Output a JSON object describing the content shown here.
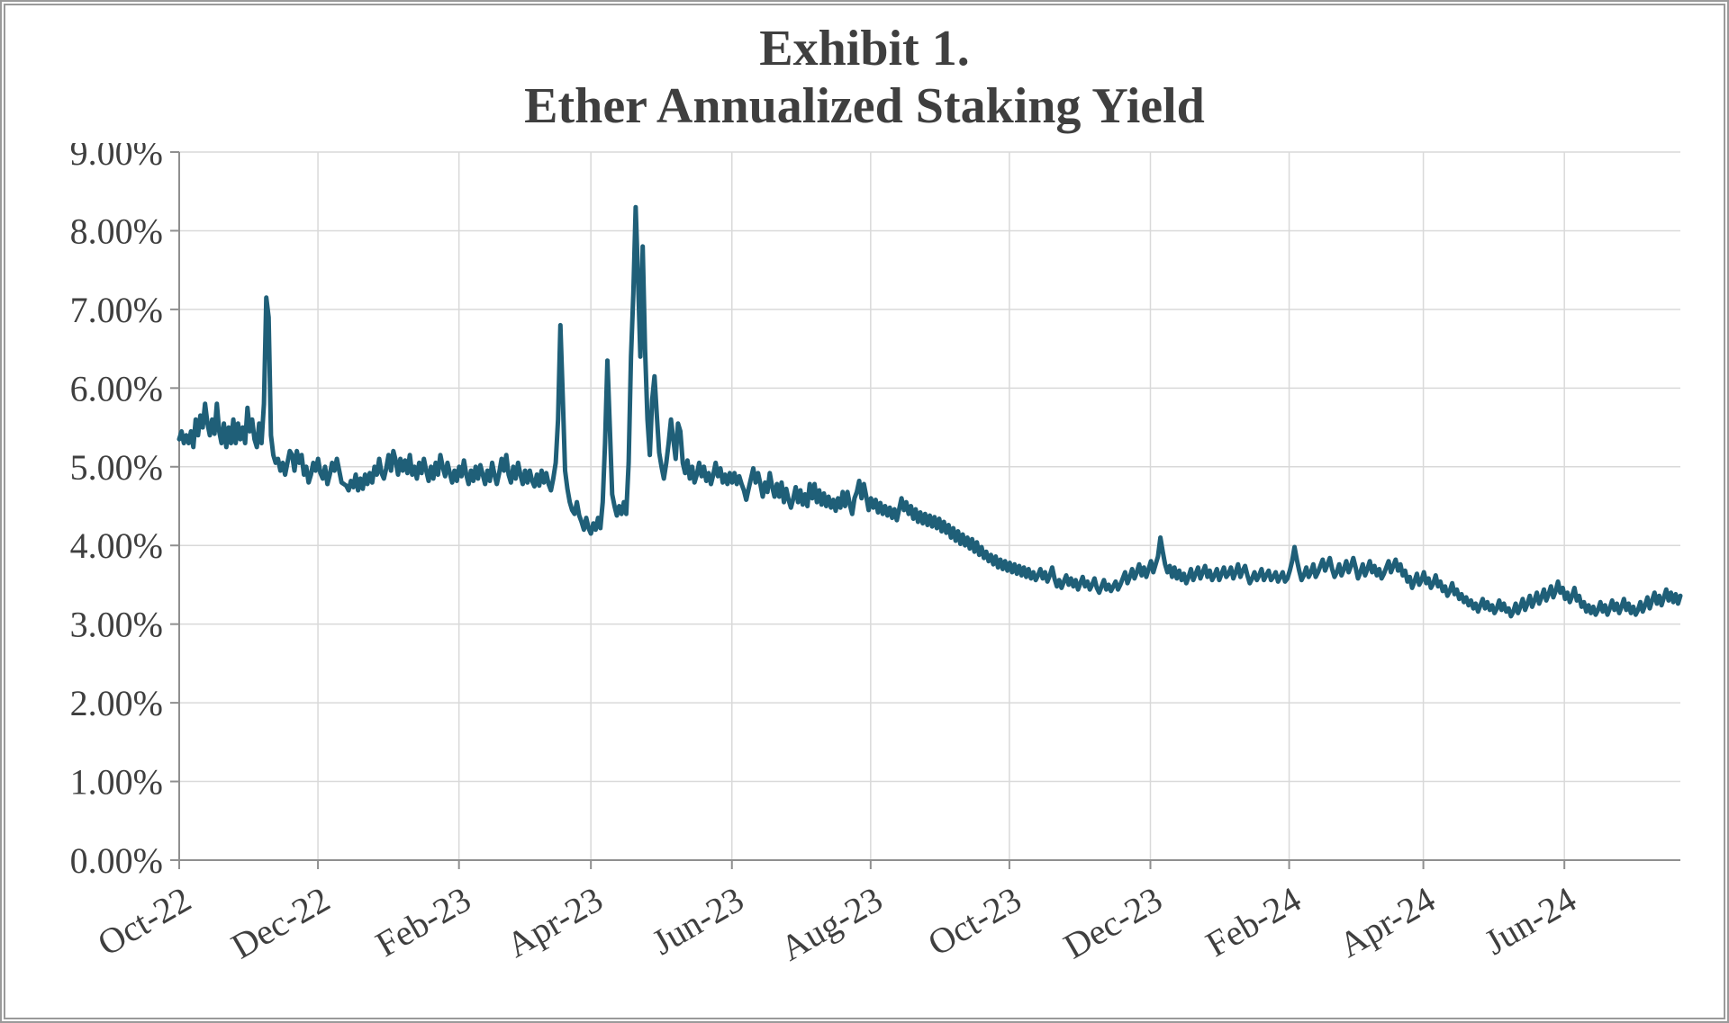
{
  "chart": {
    "type": "line",
    "title_line1": "Exhibit 1.",
    "title_line2": "Ether Annualized Staking Yield",
    "title_color": "#3f3f3f",
    "title_fontsize": 56,
    "background_color": "#ffffff",
    "frame_border_color": "#9a9a9a",
    "grid_color": "#d9d9d9",
    "axis_line_color": "#8f8f8f",
    "line_color": "#1f5f78",
    "line_width": 5,
    "tick_label_color": "#3f3f3f",
    "ytick_fontsize": 40,
    "xtick_fontsize": 40,
    "ylim": [
      0,
      9
    ],
    "yticks": [
      0,
      1,
      2,
      3,
      4,
      5,
      6,
      7,
      8,
      9
    ],
    "ytick_labels": [
      "0.00%",
      "1.00%",
      "2.00%",
      "3.00%",
      "4.00%",
      "5.00%",
      "6.00%",
      "7.00%",
      "8.00%",
      "9.00%"
    ],
    "xlim": [
      0,
      660
    ],
    "xticks": [
      0,
      61,
      123,
      181,
      243,
      304,
      365,
      427,
      488,
      547,
      609,
      670
    ],
    "xtick_labels": [
      "Oct-22",
      "Dec-22",
      "Feb-23",
      "Apr-23",
      "Jun-23",
      "Aug-23",
      "Oct-23",
      "Dec-23",
      "Feb-24",
      "Apr-24",
      "Jun-24",
      ""
    ],
    "xtick_rotation_deg": -30,
    "series_y": [
      5.35,
      5.45,
      5.3,
      5.4,
      5.3,
      5.45,
      5.25,
      5.6,
      5.4,
      5.65,
      5.5,
      5.8,
      5.55,
      5.4,
      5.6,
      5.42,
      5.8,
      5.45,
      5.3,
      5.55,
      5.25,
      5.5,
      5.3,
      5.6,
      5.3,
      5.55,
      5.35,
      5.5,
      5.3,
      5.75,
      5.45,
      5.6,
      5.35,
      5.25,
      5.55,
      5.3,
      5.8,
      7.15,
      6.9,
      5.4,
      5.15,
      5.05,
      5.1,
      4.95,
      5.05,
      4.9,
      5.05,
      5.2,
      5.15,
      4.95,
      5.2,
      5.05,
      5.15,
      4.9,
      5.0,
      4.8,
      4.9,
      5.05,
      4.95,
      5.1,
      4.92,
      4.85,
      5.0,
      4.78,
      4.9,
      5.05,
      4.95,
      5.1,
      4.95,
      4.8,
      4.78,
      4.76,
      4.7,
      4.82,
      4.74,
      4.9,
      4.7,
      4.85,
      4.72,
      4.9,
      4.78,
      4.92,
      4.8,
      5.0,
      4.9,
      5.1,
      4.92,
      4.85,
      4.98,
      5.15,
      4.95,
      5.2,
      5.08,
      4.9,
      5.1,
      4.95,
      5.08,
      4.92,
      5.15,
      4.9,
      5.0,
      4.85,
      5.05,
      4.92,
      5.1,
      4.95,
      4.82,
      5.0,
      4.85,
      5.05,
      4.9,
      5.15,
      5.0,
      4.88,
      5.05,
      4.92,
      4.8,
      4.95,
      4.82,
      5.0,
      4.88,
      5.08,
      4.9,
      4.78,
      4.95,
      4.82,
      5.0,
      4.85,
      5.02,
      4.9,
      4.78,
      4.95,
      4.82,
      5.05,
      4.9,
      4.78,
      4.92,
      5.1,
      4.95,
      5.15,
      4.9,
      4.8,
      5.0,
      4.85,
      5.05,
      4.9,
      4.78,
      4.95,
      4.8,
      4.95,
      4.82,
      4.75,
      4.9,
      4.76,
      4.95,
      4.8,
      4.92,
      4.78,
      4.7,
      4.85,
      5.05,
      5.6,
      6.8,
      5.9,
      4.95,
      4.72,
      4.55,
      4.45,
      4.4,
      4.55,
      4.38,
      4.3,
      4.2,
      4.35,
      4.22,
      4.15,
      4.28,
      4.2,
      4.35,
      4.22,
      4.55,
      5.3,
      6.35,
      5.5,
      4.65,
      4.5,
      4.38,
      4.5,
      4.4,
      4.55,
      4.4,
      5.05,
      6.4,
      7.2,
      8.3,
      7.4,
      6.4,
      7.8,
      6.5,
      5.6,
      5.15,
      5.85,
      6.15,
      5.65,
      5.18,
      5.0,
      4.85,
      5.05,
      5.3,
      5.6,
      5.35,
      5.1,
      5.55,
      5.45,
      5.05,
      4.92,
      5.08,
      4.85,
      5.0,
      4.8,
      4.9,
      5.05,
      4.88,
      5.0,
      4.82,
      4.92,
      4.78,
      4.9,
      5.05,
      4.88,
      4.98,
      4.8,
      4.9,
      4.78,
      4.92,
      4.8,
      4.92,
      4.78,
      4.88,
      4.78,
      4.7,
      4.58,
      4.72,
      4.85,
      4.98,
      4.8,
      4.92,
      4.78,
      4.62,
      4.8,
      4.68,
      4.92,
      4.75,
      4.62,
      4.78,
      4.62,
      4.8,
      4.55,
      4.72,
      4.58,
      4.48,
      4.6,
      4.74,
      4.55,
      4.7,
      4.52,
      4.65,
      4.5,
      4.78,
      4.6,
      4.78,
      4.55,
      4.7,
      4.52,
      4.66,
      4.5,
      4.62,
      4.48,
      4.58,
      4.44,
      4.6,
      4.48,
      4.68,
      4.5,
      4.68,
      4.52,
      4.4,
      4.6,
      4.68,
      4.82,
      4.6,
      4.78,
      4.62,
      4.45,
      4.6,
      4.48,
      4.58,
      4.42,
      4.54,
      4.4,
      4.5,
      4.38,
      4.48,
      4.35,
      4.46,
      4.32,
      4.46,
      4.6,
      4.45,
      4.55,
      4.4,
      4.5,
      4.34,
      4.46,
      4.3,
      4.42,
      4.28,
      4.4,
      4.26,
      4.38,
      4.24,
      4.36,
      4.22,
      4.34,
      4.18,
      4.3,
      4.16,
      4.26,
      4.1,
      4.22,
      4.06,
      4.18,
      4.02,
      4.14,
      4.0,
      4.1,
      3.96,
      4.08,
      3.92,
      4.04,
      3.88,
      3.98,
      3.84,
      3.92,
      3.8,
      3.88,
      3.76,
      3.86,
      3.72,
      3.82,
      3.7,
      3.8,
      3.68,
      3.78,
      3.66,
      3.76,
      3.64,
      3.74,
      3.62,
      3.72,
      3.6,
      3.7,
      3.58,
      3.66,
      3.56,
      3.62,
      3.7,
      3.58,
      3.66,
      3.54,
      3.62,
      3.72,
      3.58,
      3.48,
      3.56,
      3.46,
      3.54,
      3.62,
      3.5,
      3.58,
      3.48,
      3.56,
      3.44,
      3.52,
      3.6,
      3.48,
      3.54,
      3.44,
      3.5,
      3.58,
      3.46,
      3.4,
      3.48,
      3.56,
      3.44,
      3.5,
      3.42,
      3.48,
      3.54,
      3.44,
      3.5,
      3.58,
      3.66,
      3.52,
      3.6,
      3.7,
      3.58,
      3.66,
      3.76,
      3.62,
      3.72,
      3.6,
      3.7,
      3.8,
      3.66,
      3.76,
      3.86,
      4.1,
      3.92,
      3.76,
      3.66,
      3.74,
      3.6,
      3.72,
      3.58,
      3.68,
      3.56,
      3.64,
      3.52,
      3.6,
      3.7,
      3.56,
      3.64,
      3.72,
      3.58,
      3.66,
      3.74,
      3.6,
      3.68,
      3.56,
      3.62,
      3.7,
      3.56,
      3.64,
      3.72,
      3.6,
      3.64,
      3.72,
      3.58,
      3.66,
      3.76,
      3.6,
      3.68,
      3.74,
      3.62,
      3.52,
      3.58,
      3.66,
      3.56,
      3.62,
      3.7,
      3.56,
      3.62,
      3.68,
      3.56,
      3.6,
      3.66,
      3.54,
      3.6,
      3.66,
      3.54,
      3.58,
      3.68,
      3.8,
      3.98,
      3.82,
      3.68,
      3.56,
      3.62,
      3.72,
      3.6,
      3.66,
      3.76,
      3.6,
      3.66,
      3.74,
      3.82,
      3.68,
      3.76,
      3.84,
      3.7,
      3.6,
      3.66,
      3.76,
      3.62,
      3.7,
      3.8,
      3.66,
      3.74,
      3.84,
      3.72,
      3.58,
      3.66,
      3.76,
      3.62,
      3.7,
      3.8,
      3.66,
      3.74,
      3.62,
      3.7,
      3.58,
      3.64,
      3.72,
      3.8,
      3.66,
      3.74,
      3.82,
      3.68,
      3.76,
      3.62,
      3.68,
      3.54,
      3.6,
      3.46,
      3.54,
      3.64,
      3.5,
      3.56,
      3.66,
      3.52,
      3.58,
      3.46,
      3.52,
      3.62,
      3.48,
      3.54,
      3.42,
      3.48,
      3.36,
      3.42,
      3.52,
      3.38,
      3.44,
      3.32,
      3.38,
      3.28,
      3.34,
      3.24,
      3.3,
      3.2,
      3.26,
      3.16,
      3.24,
      3.32,
      3.2,
      3.28,
      3.18,
      3.24,
      3.14,
      3.2,
      3.3,
      3.18,
      3.26,
      3.16,
      3.2,
      3.1,
      3.16,
      3.26,
      3.14,
      3.22,
      3.32,
      3.18,
      3.26,
      3.36,
      3.22,
      3.3,
      3.4,
      3.26,
      3.34,
      3.44,
      3.3,
      3.38,
      3.48,
      3.34,
      3.42,
      3.54,
      3.4,
      3.46,
      3.32,
      3.4,
      3.28,
      3.36,
      3.46,
      3.3,
      3.36,
      3.22,
      3.28,
      3.16,
      3.24,
      3.14,
      3.22,
      3.12,
      3.18,
      3.28,
      3.16,
      3.24,
      3.12,
      3.2,
      3.3,
      3.18,
      3.26,
      3.14,
      3.22,
      3.32,
      3.18,
      3.26,
      3.14,
      3.22,
      3.12,
      3.18,
      3.28,
      3.16,
      3.24,
      3.34,
      3.2,
      3.3,
      3.4,
      3.26,
      3.36,
      3.24,
      3.34,
      3.44,
      3.3,
      3.4,
      3.28,
      3.38,
      3.26,
      3.36
    ]
  }
}
